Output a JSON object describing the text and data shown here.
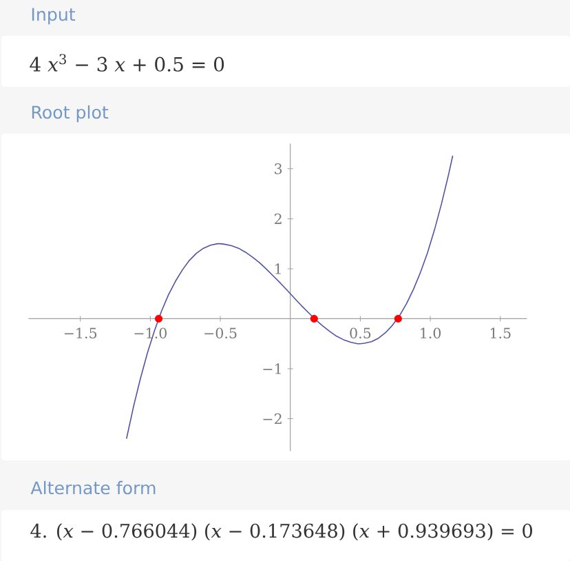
{
  "chart_data": {
    "type": "line",
    "title": "Root plot",
    "annotations": [
      "Input",
      "4 *x*$^{3}$ − 3 *x* + 0.5 = 0",
      "Alternate form",
      "4. (*x* − 0.766044) (*x* − 0.173648) (*x* + 0.939693) = 0"
    ],
    "xlim": [
      -1.87,
      1.69
    ],
    "ylim": [
      -2.65,
      3.5
    ],
    "xticks": [
      {
        "value": -1.5,
        "label": "−1.5"
      },
      {
        "value": -1,
        "label": "−1.0"
      },
      {
        "value": -0.5,
        "label": "−0.5"
      },
      {
        "value": 0.5,
        "label": "0.5"
      },
      {
        "value": 1,
        "label": "1.0"
      },
      {
        "value": 1.5,
        "label": "1.5"
      }
    ],
    "yticks": [
      {
        "value": -2,
        "label": "−2"
      },
      {
        "value": -1,
        "label": "−1"
      },
      {
        "value": 1,
        "label": "1"
      },
      {
        "value": 2,
        "label": "2"
      },
      {
        "value": 3,
        "label": "3"
      }
    ],
    "series": [
      {
        "color": "#5054a2",
        "x": [
          -1.17,
          -1.12,
          -1.07,
          -1.02,
          -0.97,
          -0.92,
          -0.87,
          -0.82,
          -0.77,
          -0.72,
          -0.67,
          -0.62,
          -0.57,
          -0.52,
          -0.5,
          -0.47,
          -0.42,
          -0.37,
          -0.32,
          -0.27,
          -0.22,
          -0.17,
          -0.12,
          -0.07,
          -0.02,
          0.03,
          0.08,
          0.13,
          0.18,
          0.23,
          0.28,
          0.33,
          0.38,
          0.43,
          0.48,
          0.5,
          0.53,
          0.58,
          0.63,
          0.68,
          0.73,
          0.78,
          0.83,
          0.88,
          0.93,
          0.98,
          1.03,
          1.08,
          1.13,
          1.16
        ],
        "values": [
          -2.4,
          -1.76,
          -1.19,
          -0.68,
          -0.24,
          0.15,
          0.48,
          0.75,
          0.98,
          1.17,
          1.31,
          1.41,
          1.47,
          1.5,
          1.5,
          1.49,
          1.46,
          1.41,
          1.33,
          1.23,
          1.12,
          0.99,
          0.85,
          0.71,
          0.56,
          0.41,
          0.26,
          0.12,
          -0.02,
          -0.14,
          -0.25,
          -0.35,
          -0.42,
          -0.47,
          -0.5,
          -0.5,
          -0.49,
          -0.46,
          -0.39,
          -0.28,
          -0.13,
          0.06,
          0.3,
          0.59,
          0.93,
          1.32,
          1.78,
          2.3,
          2.88,
          3.26
        ]
      },
      {
        "type": "scatter",
        "marker": "circle",
        "color": "#ff0000",
        "x": [
          -0.94,
          0.17,
          0.77
        ],
        "values": [
          0,
          0,
          0
        ]
      }
    ]
  }
}
